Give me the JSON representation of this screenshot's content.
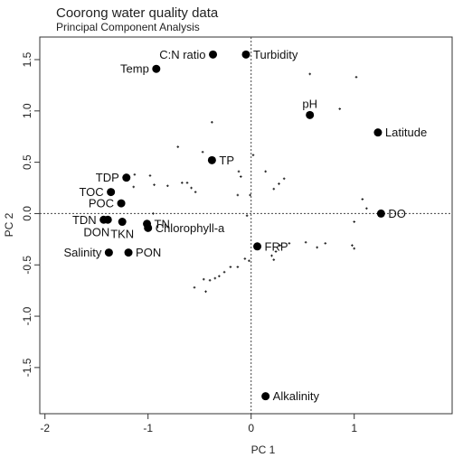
{
  "chart_data": {
    "type": "scatter",
    "title": "Coorong water quality data",
    "subtitle": "Principal Component Analysis",
    "xlabel": "PC 1",
    "ylabel": "PC 2",
    "xlim": [
      -2.05,
      1.95
    ],
    "ylim": [
      -1.95,
      1.72
    ],
    "xticks": [
      "-2",
      "-1",
      "0",
      "1"
    ],
    "xtick_values": [
      -2,
      -1,
      0,
      1
    ],
    "yticks": [
      "-1.5",
      "-1.0",
      "-0.5",
      "0.0",
      "0.5",
      "1.0",
      "1.5"
    ],
    "ytick_values": [
      -1.5,
      -1.0,
      -0.5,
      0.0,
      0.5,
      1.0,
      1.5
    ],
    "reference_lines": {
      "x": 0,
      "y": 0,
      "style": "dotted"
    },
    "variables": [
      {
        "label": "C:N ratio",
        "x": -0.37,
        "y": 1.55,
        "label_side": "left"
      },
      {
        "label": "Turbidity",
        "x": -0.05,
        "y": 1.55,
        "label_side": "right"
      },
      {
        "label": "Temp",
        "x": -0.92,
        "y": 1.41,
        "label_side": "left"
      },
      {
        "label": "pH",
        "x": 0.57,
        "y": 0.96,
        "label_side": "above"
      },
      {
        "label": "Latitude",
        "x": 1.23,
        "y": 0.79,
        "label_side": "right"
      },
      {
        "label": "TP",
        "x": -0.38,
        "y": 0.52,
        "label_side": "right"
      },
      {
        "label": "TDP",
        "x": -1.21,
        "y": 0.35,
        "label_side": "left"
      },
      {
        "label": "TOC",
        "x": -1.36,
        "y": 0.21,
        "label_side": "left"
      },
      {
        "label": "POC",
        "x": -1.26,
        "y": 0.1,
        "label_side": "left"
      },
      {
        "label": "DO",
        "x": 1.26,
        "y": 0.0,
        "label_side": "right"
      },
      {
        "label": "TDN",
        "x": -1.43,
        "y": -0.06,
        "label_side": "left"
      },
      {
        "label": "DON",
        "x": -1.39,
        "y": -0.06,
        "label_side": "below-left"
      },
      {
        "label": "TKN",
        "x": -1.25,
        "y": -0.08,
        "label_side": "below"
      },
      {
        "label": "TN",
        "x": -1.01,
        "y": -0.1,
        "label_side": "right"
      },
      {
        "label": "Chlorophyll-a",
        "x": -1.0,
        "y": -0.14,
        "label_side": "right"
      },
      {
        "label": "FRP",
        "x": 0.06,
        "y": -0.32,
        "label_side": "right"
      },
      {
        "label": "Salinity",
        "x": -1.38,
        "y": -0.38,
        "label_side": "left"
      },
      {
        "label": "PON",
        "x": -1.19,
        "y": -0.38,
        "label_side": "right"
      },
      {
        "label": "Alkalinity",
        "x": 0.14,
        "y": -1.78,
        "label_side": "right"
      }
    ],
    "samples": [
      {
        "x": 0.57,
        "y": 1.36
      },
      {
        "x": 1.02,
        "y": 1.33
      },
      {
        "x": 0.86,
        "y": 1.02
      },
      {
        "x": -0.38,
        "y": 0.89
      },
      {
        "x": -0.71,
        "y": 0.65
      },
      {
        "x": -0.47,
        "y": 0.6
      },
      {
        "x": 0.02,
        "y": 0.57
      },
      {
        "x": -1.13,
        "y": 0.38
      },
      {
        "x": -0.98,
        "y": 0.37
      },
      {
        "x": -0.67,
        "y": 0.3
      },
      {
        "x": -0.62,
        "y": 0.3
      },
      {
        "x": -0.12,
        "y": 0.41
      },
      {
        "x": -0.1,
        "y": 0.36
      },
      {
        "x": 0.14,
        "y": 0.41
      },
      {
        "x": 0.32,
        "y": 0.34
      },
      {
        "x": 0.27,
        "y": 0.29
      },
      {
        "x": -1.14,
        "y": 0.26
      },
      {
        "x": -0.94,
        "y": 0.28
      },
      {
        "x": -0.81,
        "y": 0.27
      },
      {
        "x": -0.58,
        "y": 0.25
      },
      {
        "x": -0.54,
        "y": 0.21
      },
      {
        "x": -0.13,
        "y": 0.18
      },
      {
        "x": -0.01,
        "y": 0.18
      },
      {
        "x": 0.22,
        "y": 0.24
      },
      {
        "x": 1.08,
        "y": 0.14
      },
      {
        "x": 1.12,
        "y": 0.05
      },
      {
        "x": 1.0,
        "y": -0.08
      },
      {
        "x": -0.95,
        "y": 0.0
      },
      {
        "x": -0.04,
        "y": -0.02
      },
      {
        "x": 0.53,
        "y": -0.28
      },
      {
        "x": 0.64,
        "y": -0.33
      },
      {
        "x": 0.72,
        "y": -0.29
      },
      {
        "x": 0.98,
        "y": -0.31
      },
      {
        "x": 1.0,
        "y": -0.34
      },
      {
        "x": 0.37,
        "y": -0.29
      },
      {
        "x": 0.28,
        "y": -0.31
      },
      {
        "x": 0.24,
        "y": -0.37
      },
      {
        "x": 0.2,
        "y": -0.41
      },
      {
        "x": 0.22,
        "y": -0.45
      },
      {
        "x": -0.02,
        "y": -0.46
      },
      {
        "x": -0.06,
        "y": -0.44
      },
      {
        "x": -0.13,
        "y": -0.52
      },
      {
        "x": -0.2,
        "y": -0.52
      },
      {
        "x": -0.26,
        "y": -0.57
      },
      {
        "x": -0.31,
        "y": -0.61
      },
      {
        "x": -0.35,
        "y": -0.63
      },
      {
        "x": -0.4,
        "y": -0.65
      },
      {
        "x": -0.46,
        "y": -0.64
      },
      {
        "x": -0.55,
        "y": -0.72
      },
      {
        "x": -0.44,
        "y": -0.76
      }
    ]
  }
}
